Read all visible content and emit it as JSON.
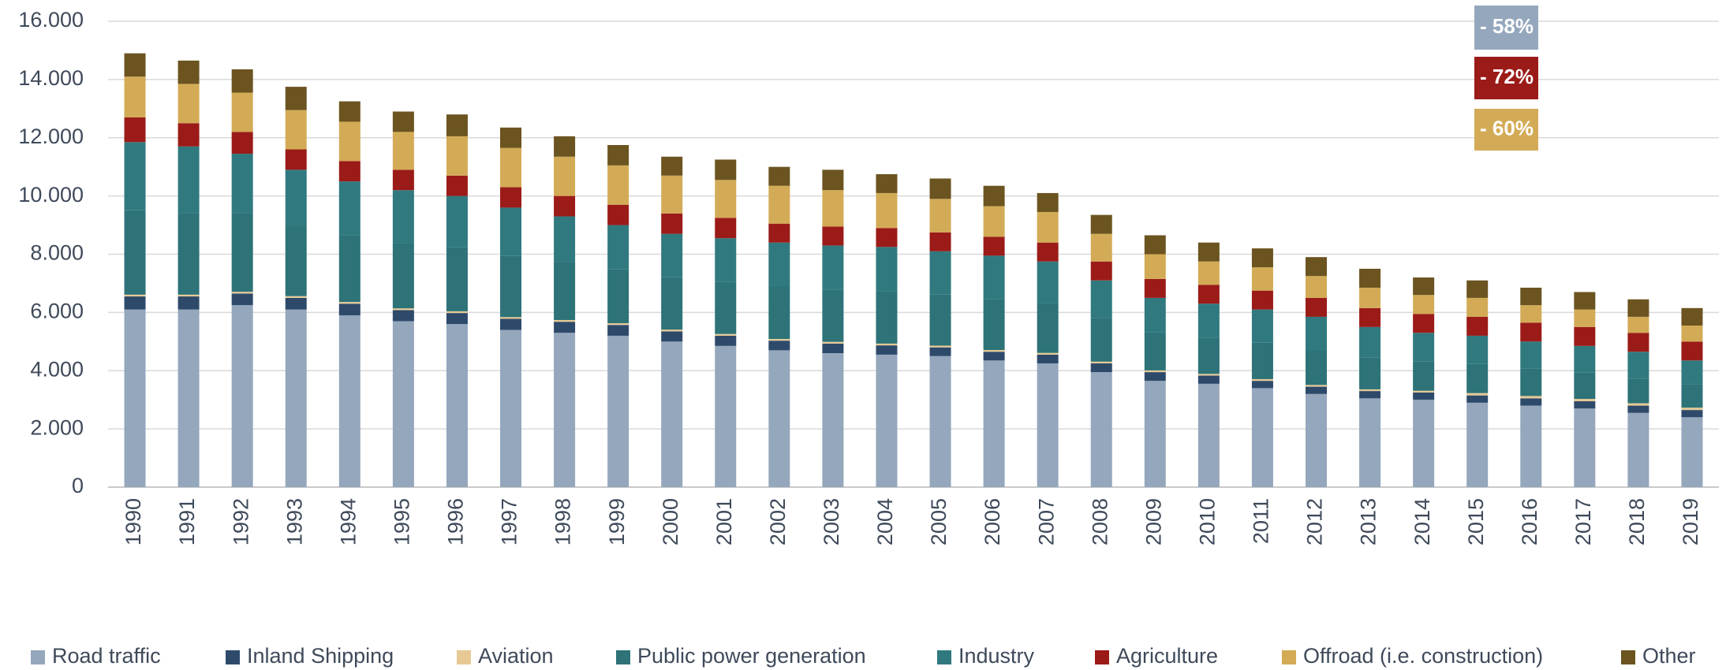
{
  "chart_data": {
    "type": "stacked_bar",
    "categories": [
      "1990",
      "1991",
      "1992",
      "1993",
      "1994",
      "1995",
      "1996",
      "1997",
      "1998",
      "1999",
      "2000",
      "2001",
      "2002",
      "2003",
      "2004",
      "2005",
      "2006",
      "2007",
      "2008",
      "2009",
      "2010",
      "2011",
      "2012",
      "2013",
      "2014",
      "2015",
      "2016",
      "2017",
      "2018",
      "2019"
    ],
    "series": [
      {
        "name": "Road traffic",
        "color": "#94a7bc",
        "values": [
          6100,
          6100,
          6250,
          6100,
          5900,
          5700,
          5600,
          5400,
          5300,
          5200,
          5000,
          4850,
          4700,
          4600,
          4550,
          4500,
          4350,
          4250,
          3950,
          3650,
          3550,
          3400,
          3200,
          3050,
          3000,
          2900,
          2800,
          2700,
          2550,
          2400
        ]
      },
      {
        "name": "Inland Shipping",
        "color": "#2e4a6b",
        "values": [
          450,
          450,
          400,
          400,
          400,
          380,
          380,
          380,
          380,
          370,
          350,
          350,
          330,
          330,
          320,
          300,
          300,
          300,
          300,
          300,
          280,
          250,
          250,
          250,
          250,
          250,
          250,
          250,
          250,
          250
        ]
      },
      {
        "name": "Aviation",
        "color": "#e6c995",
        "values": [
          60,
          60,
          60,
          60,
          60,
          60,
          60,
          60,
          60,
          60,
          60,
          60,
          60,
          60,
          60,
          60,
          60,
          60,
          60,
          60,
          60,
          60,
          60,
          60,
          60,
          80,
          80,
          80,
          80,
          80
        ]
      },
      {
        "name": "Public power generation",
        "color": "#2d7378",
        "values": [
          2900,
          2800,
          2700,
          2400,
          2300,
          2250,
          2200,
          2100,
          2000,
          1850,
          1800,
          1800,
          1800,
          1800,
          1800,
          1750,
          1750,
          1700,
          1500,
          1300,
          1250,
          1250,
          1200,
          1100,
          1000,
          1000,
          950,
          900,
          850,
          800
        ]
      },
      {
        "name": "Industry",
        "color": "#307a7f",
        "values": [
          2340,
          2290,
          2040,
          1940,
          1840,
          1810,
          1760,
          1660,
          1560,
          1520,
          1490,
          1490,
          1510,
          1510,
          1520,
          1490,
          1490,
          1440,
          1290,
          1190,
          1160,
          1140,
          1140,
          1040,
          990,
          970,
          920,
          920,
          920,
          820
        ]
      },
      {
        "name": "Agriculture",
        "color": "#9b1b18",
        "values": [
          850,
          800,
          750,
          700,
          700,
          700,
          700,
          700,
          700,
          700,
          700,
          700,
          650,
          650,
          650,
          650,
          650,
          650,
          650,
          650,
          650,
          650,
          650,
          650,
          650,
          650,
          650,
          650,
          650,
          650
        ]
      },
      {
        "name": "Offroad (i.e. construction)",
        "color": "#d3ab56",
        "values": [
          1400,
          1350,
          1350,
          1350,
          1350,
          1300,
          1350,
          1350,
          1350,
          1350,
          1300,
          1300,
          1300,
          1250,
          1200,
          1150,
          1050,
          1050,
          950,
          850,
          800,
          800,
          750,
          700,
          650,
          650,
          600,
          600,
          550,
          550
        ]
      },
      {
        "name": "Other",
        "color": "#6b5420",
        "values": [
          800,
          800,
          800,
          800,
          700,
          700,
          750,
          700,
          700,
          700,
          650,
          700,
          650,
          700,
          650,
          700,
          700,
          650,
          650,
          650,
          650,
          650,
          650,
          650,
          600,
          600,
          600,
          600,
          600,
          600
        ]
      }
    ],
    "ylim": [
      0,
      16000
    ],
    "yticks": [
      0,
      {
        "value": 2000,
        "label": "2.000"
      },
      {
        "value": 4000,
        "label": "4.000"
      },
      {
        "value": 6000,
        "label": "6.000"
      },
      {
        "value": 8000,
        "label": "8.000"
      },
      {
        "value": 10000,
        "label": "10.000"
      },
      {
        "value": 12000,
        "label": "12.000"
      },
      {
        "value": 14000,
        "label": "14.000"
      },
      {
        "value": 16000,
        "label": "16.000"
      }
    ],
    "grid": true,
    "legend": "bottom",
    "annotations": [
      {
        "text": "- 58%",
        "color": "#94a7bc"
      },
      {
        "text": "- 72%",
        "color": "#9b1b18"
      },
      {
        "text": "- 60%",
        "color": "#d3ab56"
      }
    ]
  }
}
